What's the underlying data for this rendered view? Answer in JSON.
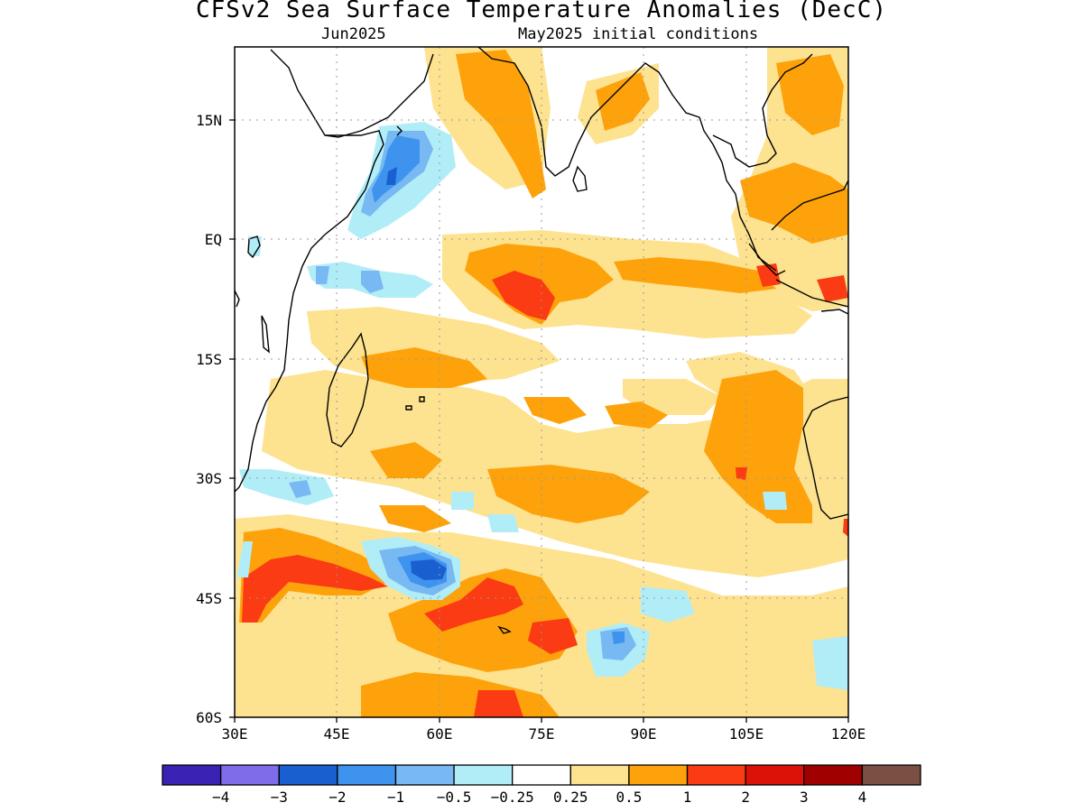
{
  "title": "CFSv2 Sea Surface Temperature Anomalies (DecC)",
  "subtitle_left": "Jun2025",
  "subtitle_right": "May2025 initial conditions",
  "lat_ticks": [
    "15N",
    "EQ",
    "15S",
    "30S",
    "45S",
    "60S"
  ],
  "lon_ticks": [
    "30E",
    "45E",
    "60E",
    "75E",
    "90E",
    "105E",
    "120E"
  ],
  "colorbar": {
    "colors": [
      "#3a22b4",
      "#7f6ce8",
      "#1a5fd0",
      "#3d93ee",
      "#78b8f3",
      "#b1edf7",
      "#ffffff",
      "#fde28f",
      "#fda20b",
      "#fb3b13",
      "#dc1209",
      "#a00000",
      "#7a5044"
    ],
    "labels": [
      "−4",
      "−3",
      "−2",
      "−1",
      "−0.5",
      "−0.25",
      "0.25",
      "0.5",
      "1",
      "2",
      "3",
      "4"
    ]
  }
}
